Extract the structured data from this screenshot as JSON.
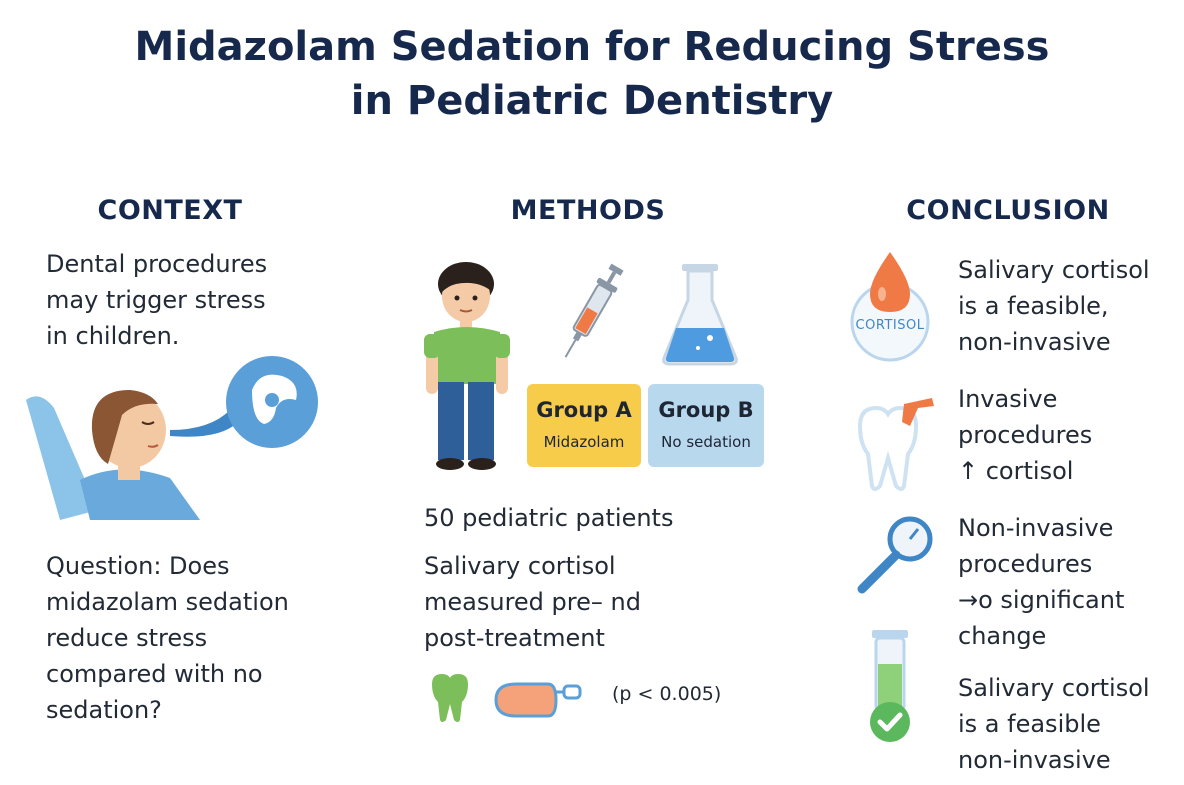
{
  "title": {
    "line1": "Midazolam Sedation for Reducing Stress",
    "line2": "in Pediatric Dentistry"
  },
  "context": {
    "heading": "CONTEXT",
    "intro_lines": [
      "Dental procedures",
      "may trigger stress",
      "in children."
    ],
    "question_lines": [
      "Question: Does",
      "midazolam sedation",
      "reduce stress",
      "compared with no",
      "sedation?"
    ]
  },
  "methods": {
    "heading": "METHODS",
    "group_a": {
      "name": "Group A",
      "sub": "Midazolam"
    },
    "group_b": {
      "name": "Group B",
      "sub": "No sedation"
    },
    "patients": "50 pediatric patients",
    "measure_lines": [
      "Salivary cortisol",
      "measured pre– nd",
      "post-treatment"
    ],
    "pvalue": "(p < 0.005)"
  },
  "conclusion": {
    "heading": "CONCLUSION",
    "cortisol_badge": "CORTISOL",
    "items": [
      {
        "icon": "cortisol-drop-icon",
        "lines": [
          "Salivary cortisol",
          "is a feasible,",
          "non-invasive"
        ]
      },
      {
        "icon": "tooth-icon",
        "lines": [
          "Invasive",
          "procedures",
          "↑ cortisol"
        ]
      },
      {
        "icon": "magnifier-icon",
        "lines": [
          "Non-invasive",
          "procedures",
          "→o significant",
          "change"
        ]
      },
      {
        "icon": "test-tube-check-icon",
        "lines": [
          "Salivary cortisol",
          "is a feasible",
          "non-invasive"
        ]
      }
    ]
  },
  "colors": {
    "title": "#16294d",
    "group_a_bg": "#f7cc4a",
    "group_b_bg": "#b8d8ee",
    "accent_orange": "#f07a45",
    "accent_blue": "#3f86c7",
    "accent_green": "#5cb85c"
  }
}
